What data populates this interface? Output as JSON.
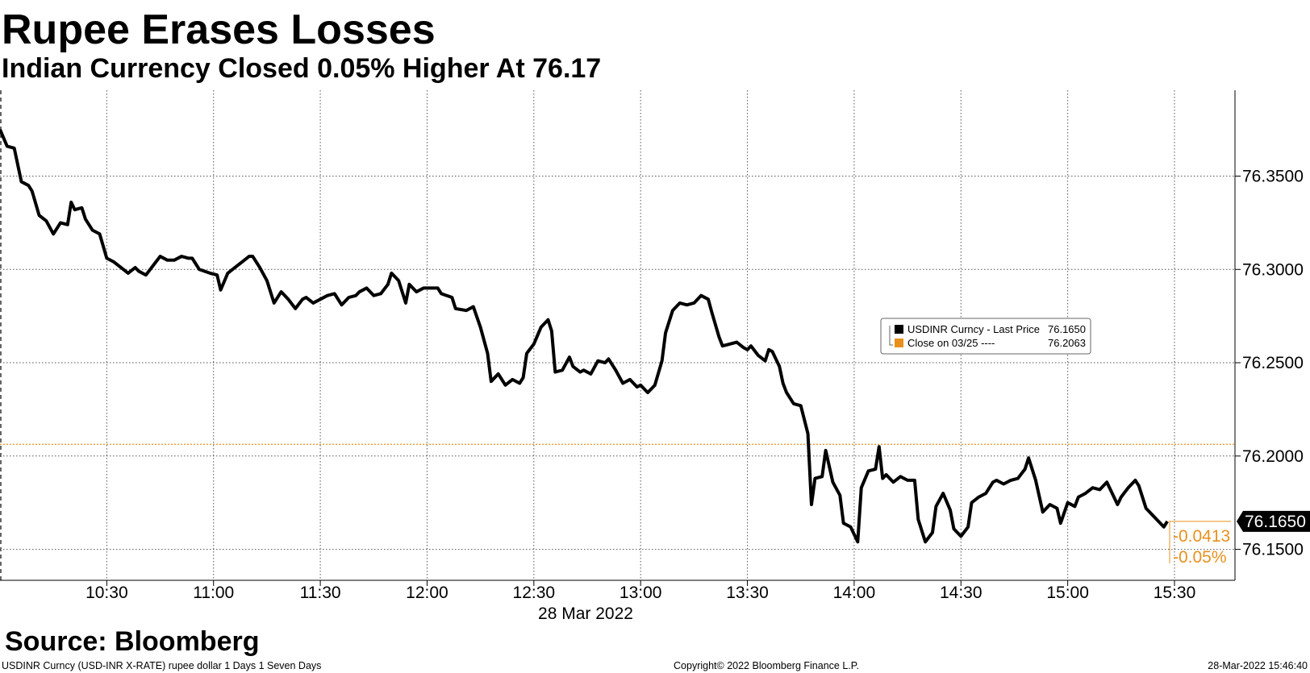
{
  "chart_data": {
    "type": "line",
    "title": "Rupee Erases Losses",
    "subtitle": "Indian Currency Closed 0.05% Higher At 76.17",
    "xlabel": "28 Mar 2022",
    "xlim": [
      600,
      947
    ],
    "xticks": [
      {
        "value": 630,
        "label": "10:30"
      },
      {
        "value": 660,
        "label": "11:00"
      },
      {
        "value": 690,
        "label": "11:30"
      },
      {
        "value": 720,
        "label": "12:00"
      },
      {
        "value": 750,
        "label": "12:30"
      },
      {
        "value": 780,
        "label": "13:00"
      },
      {
        "value": 810,
        "label": "13:30"
      },
      {
        "value": 840,
        "label": "14:00"
      },
      {
        "value": 870,
        "label": "14:30"
      },
      {
        "value": 900,
        "label": "15:00"
      },
      {
        "value": 930,
        "label": "15:30"
      }
    ],
    "ylim": [
      76.1334,
      76.396
    ],
    "yticks": [
      {
        "value": 76.15,
        "label": "76.1500"
      },
      {
        "value": 76.2,
        "label": "76.2000"
      },
      {
        "value": 76.25,
        "label": "76.2500"
      },
      {
        "value": 76.3,
        "label": "76.3000"
      },
      {
        "value": 76.35,
        "label": "76.3500"
      }
    ],
    "grid": true,
    "x": [
      600,
      602,
      604,
      606,
      608,
      609,
      611,
      613,
      615,
      617,
      619,
      620,
      621,
      623,
      624,
      626,
      628,
      630,
      632,
      634,
      636,
      638,
      639,
      641,
      643,
      645,
      647,
      649,
      651,
      653,
      654,
      656,
      659,
      661,
      662,
      664,
      666,
      668,
      670,
      671,
      673,
      675,
      677,
      679,
      681,
      683,
      685,
      686,
      688,
      690,
      692,
      694,
      696,
      698,
      700,
      701,
      703,
      705,
      707,
      709,
      710,
      712,
      714,
      715,
      717,
      719,
      721,
      723,
      724,
      727,
      728,
      731,
      733,
      735,
      737,
      738,
      739,
      740,
      742,
      744,
      746,
      747,
      748,
      750,
      752,
      754,
      755,
      756,
      758,
      760,
      761,
      763,
      764,
      766,
      768,
      770,
      771,
      773,
      775,
      777,
      779,
      780,
      782,
      784,
      786,
      787,
      789,
      791,
      793,
      795,
      797,
      799,
      800,
      802,
      803,
      805,
      807,
      809,
      810,
      811,
      813,
      815,
      816,
      817,
      819,
      820,
      821,
      823,
      825,
      827,
      828,
      829,
      831,
      832,
      834,
      836,
      837,
      839,
      841,
      842,
      844,
      846,
      847,
      848,
      849,
      851,
      853,
      855,
      857,
      858,
      860,
      862,
      863,
      865,
      867,
      868,
      870,
      872,
      873,
      875,
      877,
      879,
      880,
      882,
      884,
      886,
      888,
      889,
      891,
      893,
      895,
      897,
      898,
      900,
      902,
      903,
      905,
      907,
      909,
      911,
      912,
      914,
      915,
      917,
      919,
      920,
      922,
      924,
      927,
      928
    ],
    "series": [
      {
        "name": "USDINR Curncy - Last Price",
        "color": "#000000",
        "last_price": {
          "value": 76.165,
          "label": "76.1650"
        },
        "values": [
          76.375,
          76.366,
          76.365,
          76.347,
          76.345,
          76.342,
          76.329,
          76.326,
          76.319,
          76.325,
          76.324,
          76.336,
          76.332,
          76.333,
          76.327,
          76.321,
          76.319,
          76.306,
          76.304,
          76.301,
          76.298,
          76.301,
          76.299,
          76.297,
          76.302,
          76.307,
          76.305,
          76.305,
          76.307,
          76.306,
          76.306,
          76.3,
          76.298,
          76.297,
          76.289,
          76.298,
          76.301,
          76.304,
          76.307,
          76.307,
          76.301,
          76.294,
          76.282,
          76.288,
          76.284,
          76.279,
          76.284,
          76.285,
          76.282,
          76.284,
          76.286,
          76.287,
          76.281,
          76.285,
          76.286,
          76.288,
          76.29,
          76.286,
          76.287,
          76.292,
          76.298,
          76.294,
          76.282,
          76.292,
          76.288,
          76.29,
          76.29,
          76.29,
          76.287,
          76.285,
          76.279,
          76.278,
          76.28,
          76.269,
          76.255,
          76.24,
          76.242,
          76.244,
          76.238,
          76.241,
          76.239,
          76.242,
          76.255,
          76.26,
          76.269,
          76.273,
          76.267,
          76.245,
          76.246,
          76.253,
          76.248,
          76.245,
          76.246,
          76.244,
          76.251,
          76.25,
          76.252,
          76.246,
          76.239,
          76.241,
          76.237,
          76.238,
          76.234,
          76.238,
          76.251,
          76.266,
          76.278,
          76.282,
          76.281,
          76.282,
          76.286,
          76.284,
          76.277,
          76.264,
          76.259,
          76.26,
          76.261,
          76.258,
          76.257,
          76.259,
          76.254,
          76.251,
          76.257,
          76.256,
          76.248,
          76.239,
          76.234,
          76.228,
          76.227,
          76.212,
          76.174,
          76.188,
          76.189,
          76.203,
          76.186,
          76.179,
          76.164,
          76.162,
          76.154,
          76.183,
          76.192,
          76.193,
          76.205,
          76.188,
          76.19,
          76.186,
          76.189,
          76.187,
          76.187,
          76.166,
          76.154,
          76.159,
          76.173,
          76.18,
          76.171,
          76.161,
          76.157,
          76.162,
          76.175,
          76.178,
          76.18,
          76.186,
          76.187,
          76.185,
          76.187,
          76.188,
          76.193,
          76.199,
          76.187,
          76.17,
          76.174,
          76.172,
          76.164,
          76.175,
          76.173,
          76.178,
          76.18,
          76.183,
          76.182,
          76.186,
          76.182,
          76.174,
          76.178,
          76.183,
          76.187,
          76.184,
          76.172,
          76.168,
          76.162,
          76.165
        ]
      }
    ],
    "reference": {
      "name": "Close on 03/25 ----",
      "value": 76.2063,
      "label": "76.2063",
      "color": "#e8901c"
    },
    "change": -0.0413,
    "change_pct": {
      "value": -0.05,
      "label": "-0.05%"
    },
    "source": "Source: Bloomberg",
    "footer": [
      "USDINR Curncy (USD-INR X-RATE) rupee dollar 1 Days 1 Seven Days",
      "Copyright© 2022 Bloomberg Finance L.P.",
      "28-Mar-2022 15:46:40"
    ]
  }
}
